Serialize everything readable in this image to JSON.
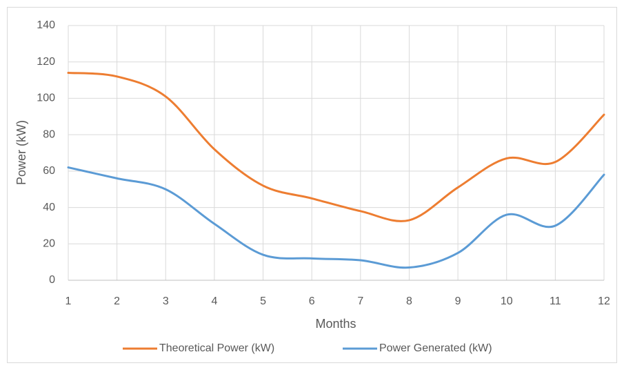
{
  "chart_data": {
    "type": "line",
    "x_label": "Months",
    "y_label": "Power (kW)",
    "x": [
      1,
      2,
      3,
      4,
      5,
      6,
      7,
      8,
      9,
      10,
      11,
      12
    ],
    "series": [
      {
        "name": "Theoretical Power (kW)",
        "color": "#ed7d31",
        "values": [
          114,
          112,
          101,
          72,
          52,
          45,
          38,
          33,
          51,
          67,
          65,
          91
        ]
      },
      {
        "name": "Power Generated (kW)",
        "color": "#5b9bd5",
        "values": [
          62,
          56,
          50,
          31,
          14,
          12,
          11,
          7,
          15,
          36,
          30,
          58
        ]
      }
    ],
    "xlim": [
      1,
      12
    ],
    "xticks": [
      1,
      2,
      3,
      4,
      5,
      6,
      7,
      8,
      9,
      10,
      11,
      12
    ],
    "ylim": [
      0,
      140
    ],
    "yticks": [
      0,
      20,
      40,
      60,
      80,
      100,
      120,
      140
    ],
    "grid": true,
    "smooth": true,
    "legend": "bottom"
  }
}
